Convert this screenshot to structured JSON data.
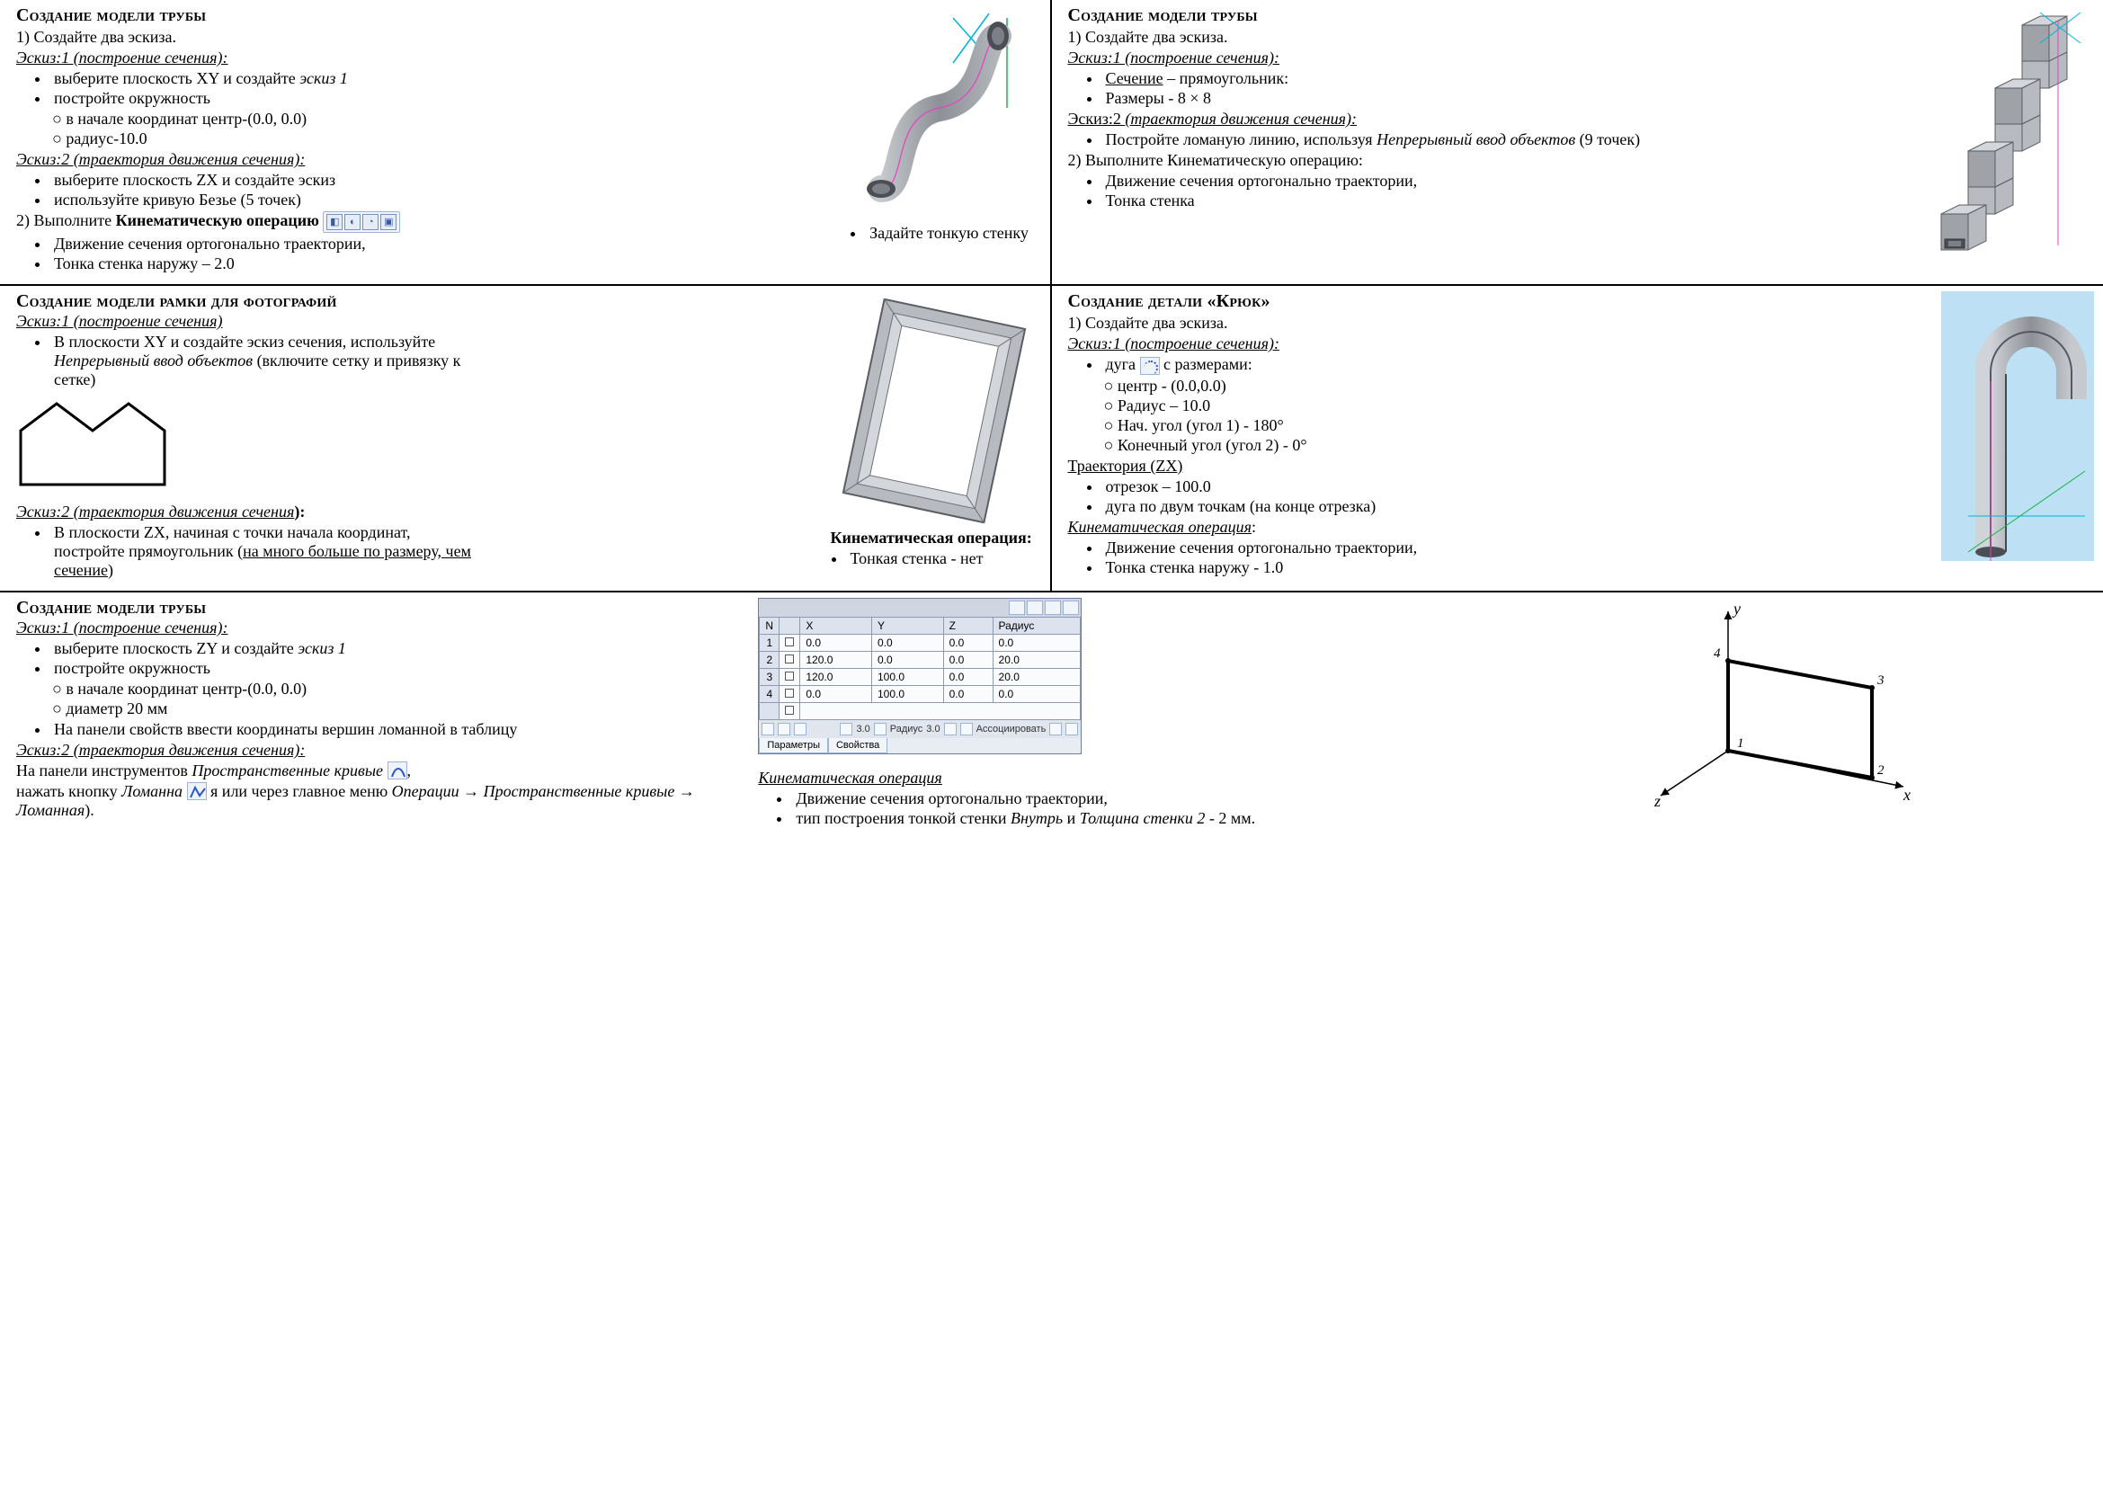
{
  "colors": {
    "text": "#000000",
    "bg": "#ffffff",
    "rule": "#000000",
    "chrome_border": "#9cb4d9",
    "chrome_fill": "#eef3fa",
    "panel_header": "#dde3ee",
    "btn_text": "#3a5aa0",
    "sky": "#cfe6f6",
    "steel": "#9aa0a6",
    "steel_dark": "#6b7076",
    "guide_cyan": "#00b4d8",
    "guide_magenta": "#e83fbf",
    "guide_green": "#15b24a",
    "hook_bg": "#bde0f5"
  },
  "typography": {
    "body_family": "Times New Roman",
    "body_size_pt": 14,
    "heading_size_pt": 15,
    "ui_family": "Tahoma"
  },
  "cell_a": {
    "heading": "Создание модели трубы",
    "step1": "1) Создайте два эскиза.",
    "sk1_label": "Эскиз:1 (построение сечения):",
    "sk1_b1": "выберите плоскость XY и создайте ",
    "sk1_b1_em": "эскиз 1",
    "sk1_b2": "постройте окружность",
    "sk1_c1": "в начале координат центр-(0.0, 0.0)",
    "sk1_c2": "радиус-10.0",
    "sk2_label": "Эскиз:2 (траектория движения сечения):",
    "sk2_b1": "выберите плоскость ZX и создайте эскиз",
    "sk2_b2": "используйте кривую Безье (5 точек)",
    "step2_a": "2) Выполните ",
    "step2_b": "Кинематическую операцию",
    "op_b1": "Движение сечения ортогонально траектории,",
    "op_b2": "Тонка стенка наружу – 2.0",
    "fig_caption_b1": "Задайте тонкую стенку"
  },
  "cell_b": {
    "heading": "Создание модели трубы",
    "step1": "1) Создайте два эскиза.",
    "sk1_label": "Эскиз:1 (построение сечения):",
    "sk1_b1_u": "Сечение",
    "sk1_b1_rest": " – прямоугольник:",
    "sk1_b2": "Размеры  - 8 × 8",
    "sk2_label_plain": "Эскиз:2 ",
    "sk2_label_em": "(траектория движения сечения):",
    "sk2_b1a": "Постройте ломаную линию, используя ",
    "sk2_b1b": "Непрерывный ввод объектов",
    "sk2_b1c": " (9 точек)",
    "step2": "2) Выполните Кинематическую операцию:",
    "op_b1": "Движение сечения ортогонально траектории,",
    "op_b2": "Тонка стенка"
  },
  "cell_c": {
    "heading": "Создание модели рамки для фотографий",
    "sk1_label": "Эскиз:1 (построение сечения)",
    "sk1_b1a": "В  плоскости XY и создайте эскиз сечения, используйте ",
    "sk1_b1b": "Непрерывный ввод объектов",
    "sk1_b1c": " (включите сетку и привязку к сетке)",
    "sk2_label": "Эскиз:2 (траектория движения сечения",
    "sk2_label_tail": "):",
    "sk2_b1a": "В плоскости ZX, начиная с точки начала координат, постройте прямоугольник (",
    "sk2_b1b": "на много больше по размеру, чем сечение",
    "sk2_b1c": ")",
    "fig_title": "Кинематическая операция:",
    "fig_b1": "Тонкая стенка - нет"
  },
  "cell_d": {
    "heading": "Создание детали «Крюк»",
    "step1": "1) Создайте два эскиза.",
    "sk1_label": "Эскиз:1 (построение сечения):",
    "arc_b1a": "дуга ",
    "arc_b1b": " с размерами:",
    "arc_c1": "центр  - (0.0,0.0)",
    "arc_c2": "Радиус – 10.0",
    "arc_c3": "Нач. угол (угол 1) - 180°",
    "arc_c4": "Конечный  угол (угол 2) - 0°",
    "traj_label": "Траектория (ZX)",
    "traj_b1": "отрезок – 100.0",
    "traj_b2": "дуга по двум точкам (на конце отрезка)",
    "kin_label": "Кинематическая операция",
    "kin_tail": ":",
    "kin_b1": "Движение сечения ортогонально траектории,",
    "kin_b2": "Тонка стенка  наружу - 1.0"
  },
  "cell_e": {
    "heading": "Создание модели трубы",
    "sk1_label": "Эскиз:1 (построение сечения):",
    "sk1_b1": "выберите плоскость ZY и создайте ",
    "sk1_b1_em": "эскиз 1",
    "sk1_b2": "постройте окружность",
    "sk1_c1": "в начале координат центр-(0.0, 0.0)",
    "sk1_c2": "диаметр 20 мм",
    "sk1_b3": "На панели свойств ввести координаты вершин ломанной в таблицу",
    "sk2_label": "Эскиз:2 (траектория движения сечения):",
    "para1a": "На панели инструментов ",
    "para1b": "Пространственные кривые",
    "para1c": ",",
    "para2a": "нажать кнопку ",
    "para2b": "Ломанна ",
    "para2c": "я или через главное меню ",
    "para2d": "Операции → Пространственные кривые → Ломанная",
    "para2e": ").",
    "kin_heading": "Кинематическая операция",
    "kin_b1": "Движение сечения ортогонально траектории,",
    "kin_b2a": "тип построения тонкой стенки ",
    "kin_b2b": "Внутрь",
    "kin_b2c": " и ",
    "kin_b2d": "Толщина стенки 2",
    "kin_b2e": " - 2 мм.",
    "table": {
      "headers": [
        "N",
        "",
        "X",
        "Y",
        "Z",
        "Радиус"
      ],
      "rows": [
        [
          "1",
          "",
          "0.0",
          "0.0",
          "0.0",
          "0.0"
        ],
        [
          "2",
          "",
          "120.0",
          "0.0",
          "0.0",
          "20.0"
        ],
        [
          "3",
          "",
          "120.0",
          "100.0",
          "0.0",
          "20.0"
        ],
        [
          "4",
          "",
          "0.0",
          "100.0",
          "0.0",
          "0.0"
        ]
      ]
    },
    "panel_tabs": [
      "Параметры",
      "Свойства"
    ],
    "axes": {
      "x": "x",
      "y": "y",
      "z": "z",
      "pts": [
        "1",
        "2",
        "3",
        "4"
      ]
    },
    "status_radius_label": "Радиус",
    "status_radius_val": "3.0",
    "status_assoc": "Ассоциировать"
  }
}
